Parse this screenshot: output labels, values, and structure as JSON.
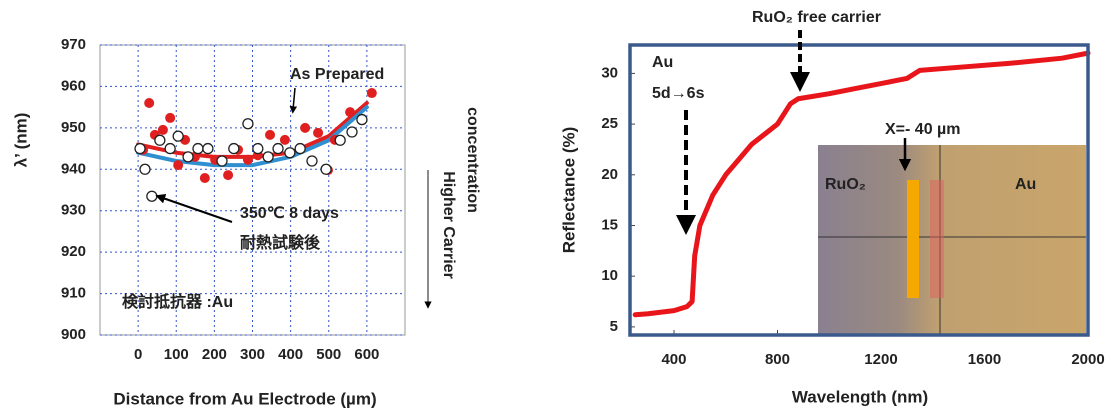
{
  "chart_data": [
    {
      "type": "scatter",
      "xlabel": "Distance from Au Electrode (µm)",
      "ylabel": "λ’ (nm)",
      "xlim": [
        -100,
        700
      ],
      "ylim": [
        900,
        970
      ],
      "xticks": [
        0,
        100,
        200,
        300,
        400,
        500,
        600
      ],
      "yticks": [
        900,
        910,
        920,
        930,
        940,
        950,
        960,
        970
      ],
      "grid": true,
      "series": [
        {
          "kind": "marker",
          "color": "#e02020",
          "x": [
            13,
            29,
            44,
            65,
            84,
            105,
            123,
            149,
            175,
            202,
            236,
            262,
            288,
            314,
            346,
            385,
            438,
            472,
            498,
            516,
            556,
            613
          ],
          "values": [
            944.7,
            956,
            948.3,
            949.5,
            952.4,
            941,
            947.1,
            943,
            937.9,
            942.3,
            938.6,
            944.7,
            942.3,
            943.4,
            948.3,
            947.1,
            950,
            948.8,
            939.8,
            947.1,
            953.8,
            958.4
          ]
        },
        {
          "kind": "marker",
          "color": "#ffffff",
          "x": [
            5,
            18,
            36,
            57,
            84,
            105,
            131,
            157,
            183,
            220,
            251,
            288,
            314,
            341,
            367,
            398,
            425,
            456,
            493,
            530,
            561,
            587
          ],
          "values": [
            945,
            940,
            933.5,
            947,
            945,
            948,
            943,
            945,
            945,
            942,
            945,
            951,
            945,
            943,
            945,
            944,
            945,
            942,
            940,
            947,
            949,
            952
          ]
        },
        {
          "kind": "line",
          "color": "#e02020",
          "x": [
            0,
            100,
            200,
            300,
            400,
            500,
            600
          ],
          "values": [
            946,
            944,
            943,
            943,
            944,
            948,
            956
          ]
        },
        {
          "kind": "line",
          "color": "#2f8fd0",
          "x": [
            0,
            100,
            200,
            300,
            400,
            500,
            600
          ],
          "values": [
            944,
            942,
            941,
            941,
            943,
            947,
            955
          ]
        }
      ],
      "annotations": [
        "As Prepared",
        "350℃  8 days",
        "耐熱試験後",
        "検討抵抗器 :Au",
        "Higher Carrier",
        "concentration"
      ]
    },
    {
      "type": "line",
      "xlabel": "Wavelength (nm)",
      "ylabel": "Reflectance (%)",
      "xlim": [
        230,
        2000
      ],
      "ylim": [
        4.2,
        32.8
      ],
      "xticks": [
        400,
        800,
        1200,
        1600,
        2000
      ],
      "yticks": [
        5,
        10,
        15,
        20,
        25,
        30
      ],
      "series": [
        {
          "kind": "line",
          "color": "#e8161b",
          "x": [
            250,
            300,
            400,
            450,
            470,
            480,
            500,
            550,
            600,
            650,
            700,
            750,
            800,
            850,
            880,
            1000,
            1100,
            1200,
            1300,
            1350,
            1500,
            1700,
            1900,
            2000
          ],
          "values": [
            6.2,
            6.3,
            6.6,
            7,
            7.5,
            12,
            15,
            18,
            20,
            21.5,
            23,
            24,
            25,
            27,
            27.5,
            28,
            28.5,
            29,
            29.5,
            30.3,
            30.6,
            31,
            31.5,
            32
          ]
        }
      ],
      "annotations": [
        "RuO₂  free carrier",
        "Au",
        "5d→6s",
        "X=- 40 µm",
        "RuO₂",
        "Au"
      ]
    }
  ]
}
